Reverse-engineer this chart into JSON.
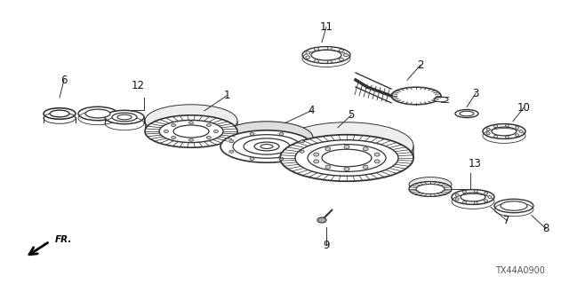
{
  "bg_color": "#ffffff",
  "diagram_code": "TX44A0900",
  "line_color": "#333333",
  "gear_color": "#555555"
}
